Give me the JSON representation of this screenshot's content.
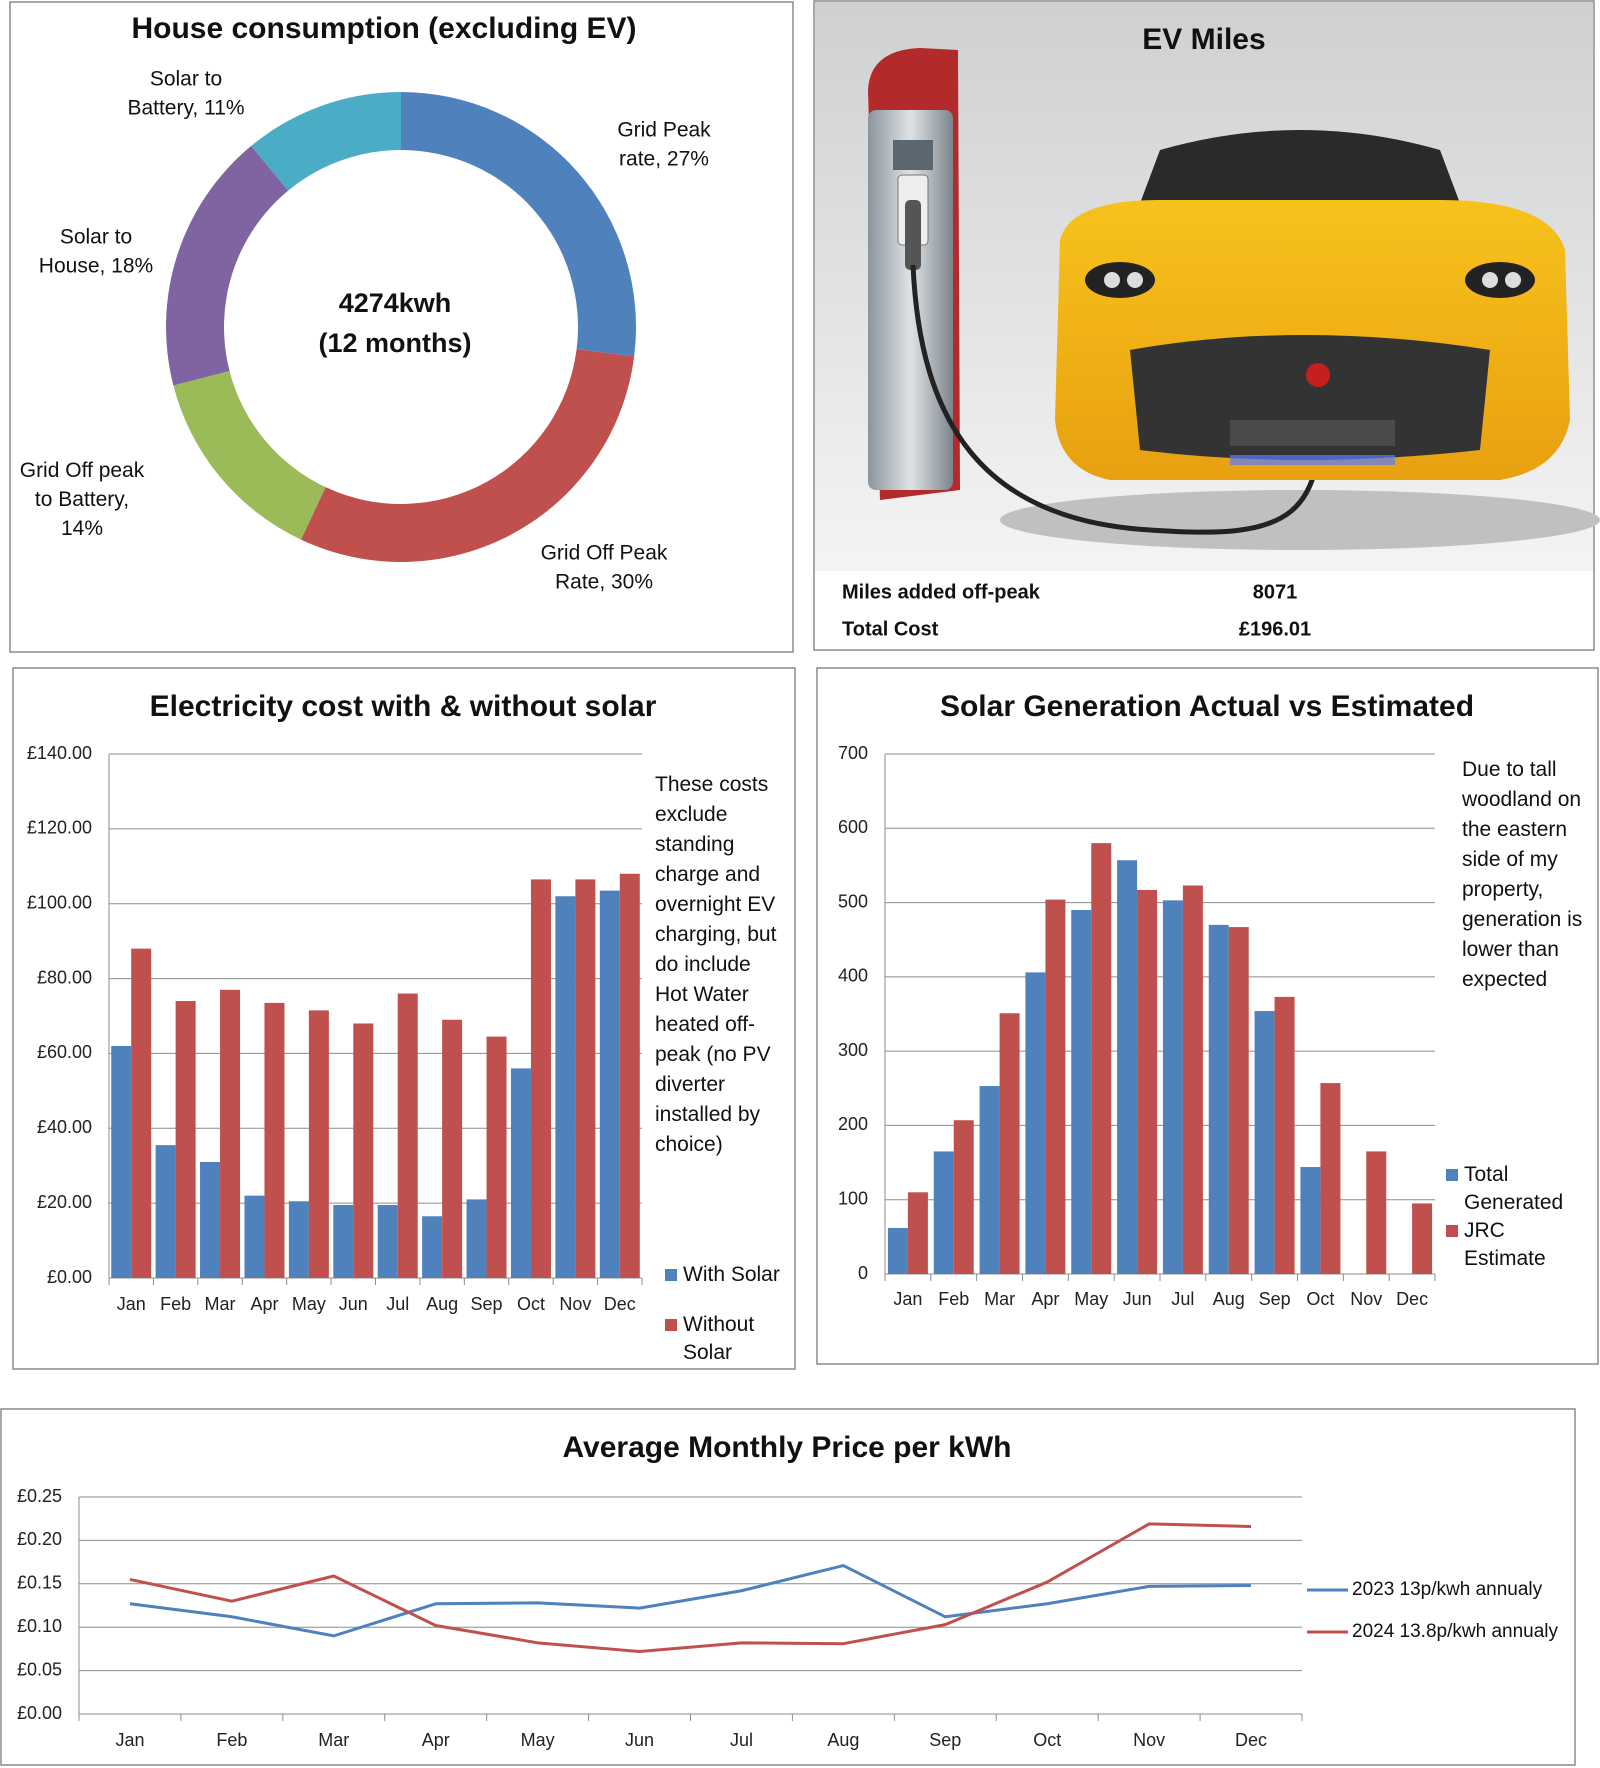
{
  "chart_data": [
    {
      "type": "pie",
      "title": "House consumption (excluding EV)",
      "donut": true,
      "center_text": [
        "4274kwh",
        "(12 months)"
      ],
      "categories": [
        "Grid Peak rate, 27%",
        "Grid Off Peak Rate, 30%",
        "Grid Off peak to Battery, 14%",
        "Solar to House, 18%",
        "Solar to Battery, 11%"
      ],
      "values": [
        27,
        30,
        14,
        18,
        11
      ],
      "colors": [
        "#4f81bd",
        "#c0504d",
        "#9bbb59",
        "#8064a2",
        "#4bacc6"
      ]
    },
    {
      "type": "bar",
      "title": "Electricity cost with & without solar",
      "annotation": "These costs exclude standing charge and overnight EV charging, but do include Hot Water heated off-peak (no PV diverter installed by choice)",
      "categories": [
        "Jan",
        "Feb",
        "Mar",
        "Apr",
        "May",
        "Jun",
        "Jul",
        "Aug",
        "Sep",
        "Oct",
        "Nov",
        "Dec"
      ],
      "series": [
        {
          "name": "With Solar",
          "color": "#4f81bd",
          "values": [
            62,
            35.5,
            31,
            22,
            20.5,
            19.5,
            19.5,
            16.5,
            21,
            56,
            102,
            103.5
          ]
        },
        {
          "name": "Without Solar",
          "color": "#c0504d",
          "values": [
            88,
            74,
            77,
            73.5,
            71.5,
            68,
            76,
            69,
            64.5,
            106.5,
            106.5,
            108
          ]
        }
      ],
      "ylim": [
        0,
        140
      ],
      "yticks": [
        {
          "value": 0,
          "label": "£0.00"
        },
        {
          "value": 20,
          "label": "£20.00"
        },
        {
          "value": 40,
          "label": "£40.00"
        },
        {
          "value": 60,
          "label": "£60.00"
        },
        {
          "value": 80,
          "label": "£80.00"
        },
        {
          "value": 100,
          "label": "£100.00"
        },
        {
          "value": 120,
          "label": "£120.00"
        },
        {
          "value": 140,
          "label": "£140.00"
        }
      ],
      "grid": true,
      "legend": "right"
    },
    {
      "type": "bar",
      "title": "Solar Generation Actual vs Estimated",
      "annotation": "Due to tall woodland on the eastern side of my property, generation is lower than expected",
      "categories": [
        "Jan",
        "Feb",
        "Mar",
        "Apr",
        "May",
        "Jun",
        "Jul",
        "Aug",
        "Sep",
        "Oct",
        "Nov",
        "Dec"
      ],
      "series": [
        {
          "name": "Total Generated",
          "color": "#4f81bd",
          "values": [
            62,
            165,
            253,
            406,
            490,
            557,
            503,
            470,
            354,
            144,
            null,
            null
          ]
        },
        {
          "name": "JRC Estimate",
          "color": "#c0504d",
          "values": [
            110,
            207,
            351,
            504,
            580,
            517,
            523,
            467,
            373,
            257,
            165,
            95
          ]
        }
      ],
      "ylim": [
        0,
        700
      ],
      "yticks": [
        0,
        100,
        200,
        300,
        400,
        500,
        600,
        700
      ],
      "grid": true,
      "legend": "right"
    },
    {
      "type": "line",
      "title": "Average Monthly Price per kWh",
      "categories": [
        "Jan",
        "Feb",
        "Mar",
        "Apr",
        "May",
        "Jun",
        "Jul",
        "Aug",
        "Sep",
        "Oct",
        "Nov",
        "Dec"
      ],
      "series": [
        {
          "name": "2023 13p/kwh annualy",
          "color": "#4f81bd",
          "values": [
            0.127,
            0.112,
            0.09,
            0.127,
            0.128,
            0.122,
            0.142,
            0.171,
            0.112,
            0.127,
            0.147,
            0.148
          ]
        },
        {
          "name": "2024 13.8p/kwh annualy",
          "color": "#c0504d",
          "values": [
            0.155,
            0.13,
            0.159,
            0.102,
            0.082,
            0.072,
            0.082,
            0.081,
            0.103,
            0.152,
            0.219,
            0.216
          ]
        }
      ],
      "ylim": [
        0,
        0.25
      ],
      "yticks": [
        {
          "value": 0,
          "label": "£0.00"
        },
        {
          "value": 0.05,
          "label": "£0.05"
        },
        {
          "value": 0.1,
          "label": "£0.10"
        },
        {
          "value": 0.15,
          "label": "£0.15"
        },
        {
          "value": 0.2,
          "label": "£0.20"
        },
        {
          "value": 0.25,
          "label": "£0.25"
        }
      ],
      "grid": true,
      "legend": "right"
    }
  ],
  "ev_panel": {
    "title": "EV Miles",
    "rows": [
      [
        "Miles added off-peak",
        "8071"
      ],
      [
        "Total Cost",
        "£196.01"
      ]
    ]
  }
}
